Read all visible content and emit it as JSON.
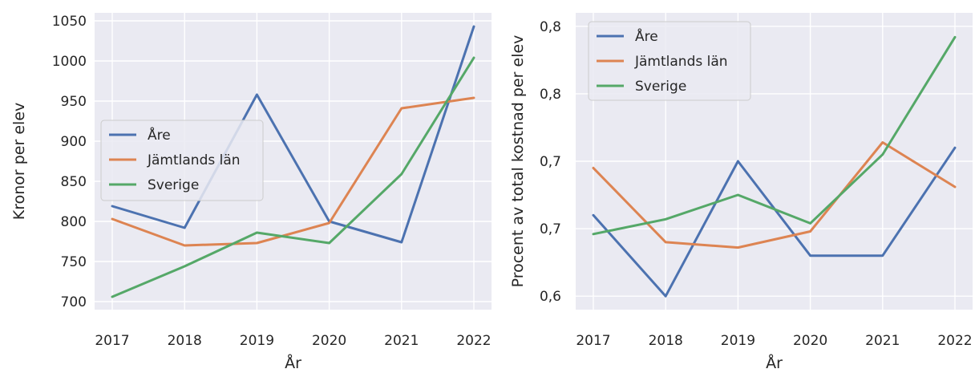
{
  "chart_data": [
    {
      "type": "line",
      "xlabel": "År",
      "ylabel": "Kronor per elev",
      "x": [
        2017,
        2018,
        2019,
        2020,
        2021,
        2022
      ],
      "yticks": [
        700,
        750,
        800,
        850,
        900,
        950,
        1000,
        1050
      ],
      "ytick_labels": [
        "700",
        "750",
        "800",
        "850",
        "900",
        "950",
        "1000",
        "1050"
      ],
      "ylim": [
        690,
        1060
      ],
      "grid": true,
      "legend_position": "center-left",
      "series": [
        {
          "name": "Åre",
          "color": "#4c72b0",
          "values": [
            819,
            792,
            958,
            800,
            774,
            1043
          ]
        },
        {
          "name": "Jämtlands län",
          "color": "#dd8452",
          "values": [
            803,
            770,
            773,
            798,
            941,
            954
          ]
        },
        {
          "name": "Sverige",
          "color": "#55a868",
          "values": [
            706,
            744,
            786,
            773,
            859,
            1004
          ]
        }
      ]
    },
    {
      "type": "line",
      "xlabel": "År",
      "ylabel": "Procent av total kostnad per elev",
      "x": [
        2017,
        2018,
        2019,
        2020,
        2021,
        2022
      ],
      "yticks": [
        0.6,
        0.65,
        0.7,
        0.75,
        0.8
      ],
      "ytick_labels": [
        "0,6",
        "0,7",
        "0,7",
        "0,8",
        "0,8"
      ],
      "ylim": [
        0.59,
        0.81
      ],
      "grid": true,
      "legend_position": "top-left",
      "series": [
        {
          "name": "Åre",
          "color": "#4c72b0",
          "values": [
            0.66,
            0.6,
            0.7,
            0.63,
            0.63,
            0.71
          ]
        },
        {
          "name": "Jämtlands län",
          "color": "#dd8452",
          "values": [
            0.695,
            0.64,
            0.636,
            0.648,
            0.714,
            0.681
          ]
        },
        {
          "name": "Sverige",
          "color": "#55a868",
          "values": [
            0.646,
            0.657,
            0.675,
            0.654,
            0.705,
            0.792
          ]
        }
      ]
    }
  ]
}
